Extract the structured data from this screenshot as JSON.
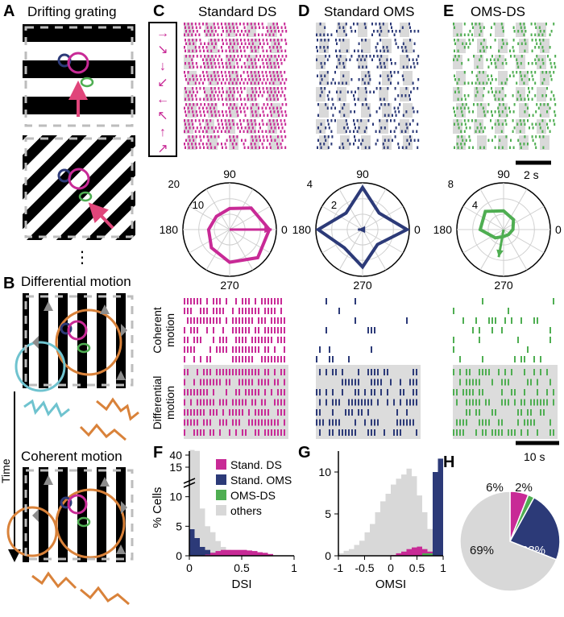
{
  "colors": {
    "ds": "#c82a96",
    "oms": "#2c3a78",
    "omsds": "#4fae52",
    "others": "#d8d8d8",
    "band": "#dcdcdc",
    "orange": "#d9823a",
    "cyan": "#6fc3cf",
    "gray": "#8c8c8c"
  },
  "panel_labels": {
    "A": "A",
    "B": "B",
    "C": "C",
    "D": "D",
    "E": "E",
    "F": "F",
    "G": "G",
    "H": "H"
  },
  "titles": {
    "A": "Drifting grating",
    "B": "Differential motion",
    "B2": "Coherent motion",
    "C": "Standard DS",
    "D": "Standard OMS",
    "E": "OMS-DS"
  },
  "labels": {
    "time": "Time",
    "ellipsis": "⋮",
    "coherent": "Coherent",
    "coherent2": "motion",
    "differential": "Differential",
    "differential2": "motion",
    "scale_2s": "2 s",
    "scale_10s": "10 s"
  },
  "direction_arrows": [
    "→",
    "↘",
    "↓",
    "↙",
    "←",
    "↖",
    "↑",
    "↗"
  ],
  "polar": {
    "C": {
      "r_ticks": [
        "20",
        "10"
      ],
      "angles": [
        "90",
        "180",
        "270",
        "0"
      ]
    },
    "D": {
      "r_ticks": [
        "4",
        "2"
      ],
      "angles": [
        "90",
        "180",
        "270",
        "0"
      ]
    },
    "E": {
      "r_ticks": [
        "8",
        "4"
      ],
      "angles": [
        "90",
        "180",
        "270",
        "0"
      ]
    }
  },
  "chart_data": [
    {
      "panel": "F",
      "type": "bar",
      "title": "",
      "xlabel": "DSI",
      "ylabel": "% Cells",
      "xlim": [
        0,
        1
      ],
      "x_ticks": [
        "0",
        "0.5",
        "1"
      ],
      "y_ticks": [
        "0",
        "5",
        "10",
        "15",
        "40"
      ],
      "axis_break": true,
      "legend": [
        "Stand. DS",
        "Stand. OMS",
        "OMS-DS",
        "others"
      ],
      "legend_placement": "top-right",
      "bin_width": 0.05,
      "series": [
        {
          "name": "others",
          "values": [
            42,
            20,
            8,
            5,
            4,
            2.5,
            1.5,
            1,
            0.8,
            0.6,
            0.5,
            0.4,
            0.3,
            0.2,
            0.1,
            0,
            0,
            0,
            0,
            0
          ]
        },
        {
          "name": "Stand. OMS",
          "values": [
            4.5,
            3,
            1.5,
            1,
            0.5,
            0.3,
            0.2,
            0.1,
            0.1,
            0,
            0,
            0,
            0,
            0,
            0,
            0,
            0,
            0,
            0,
            0
          ]
        },
        {
          "name": "OMS-DS",
          "values": [
            0,
            0,
            0,
            0,
            0.3,
            0.5,
            0.8,
            0.8,
            0.8,
            0.7,
            0.6,
            0.5,
            0.4,
            0.3,
            0.2,
            0,
            0,
            0,
            0,
            0
          ]
        },
        {
          "name": "Stand. DS",
          "values": [
            0,
            0,
            0,
            0.2,
            0.5,
            0.8,
            1,
            1,
            1,
            1,
            1,
            0.9,
            0.8,
            0.6,
            0.5,
            0.3,
            0,
            0,
            0,
            0
          ]
        }
      ]
    },
    {
      "panel": "G",
      "type": "bar",
      "title": "",
      "xlabel": "OMSI",
      "ylabel": "",
      "xlim": [
        -1,
        1
      ],
      "x_ticks": [
        "-1",
        "-0.5",
        "0",
        "0.5",
        "1"
      ],
      "y_ticks": [
        "0",
        "5",
        "10"
      ],
      "ylim": [
        0,
        12.5
      ],
      "bin_width": 0.1,
      "series": [
        {
          "name": "others",
          "values": [
            0.3,
            0.6,
            0.8,
            1.3,
            1.8,
            2.8,
            3.8,
            5.2,
            6.5,
            7.4,
            8.5,
            9.2,
            9.7,
            10.4,
            9.5,
            7.2,
            5.2,
            3.2,
            2.6,
            1.8
          ]
        },
        {
          "name": "Stand. DS",
          "values": [
            0,
            0,
            0,
            0,
            0,
            0,
            0,
            0,
            0,
            0,
            0.1,
            0.3,
            0.5,
            0.8,
            1,
            1.1,
            0.8,
            0.5,
            0,
            0
          ]
        },
        {
          "name": "OMS-DS",
          "values": [
            0,
            0,
            0,
            0,
            0,
            0,
            0,
            0,
            0,
            0,
            0,
            0,
            0,
            0,
            0,
            0,
            0.3,
            0.3,
            0.4,
            0.4
          ]
        },
        {
          "name": "Stand. OMS",
          "values": [
            0,
            0,
            0,
            0,
            0,
            0,
            0,
            0,
            0,
            0,
            0,
            0,
            0,
            0,
            0,
            0,
            0,
            0,
            10,
            11.6
          ]
        }
      ]
    },
    {
      "panel": "H",
      "type": "pie",
      "title": "",
      "labels": [
        "Stand. DS",
        "OMS-DS",
        "Stand. OMS",
        "others"
      ],
      "values": [
        6,
        2,
        23,
        69
      ],
      "value_labels": [
        "6%",
        "2%",
        "23%",
        "69%"
      ]
    }
  ]
}
